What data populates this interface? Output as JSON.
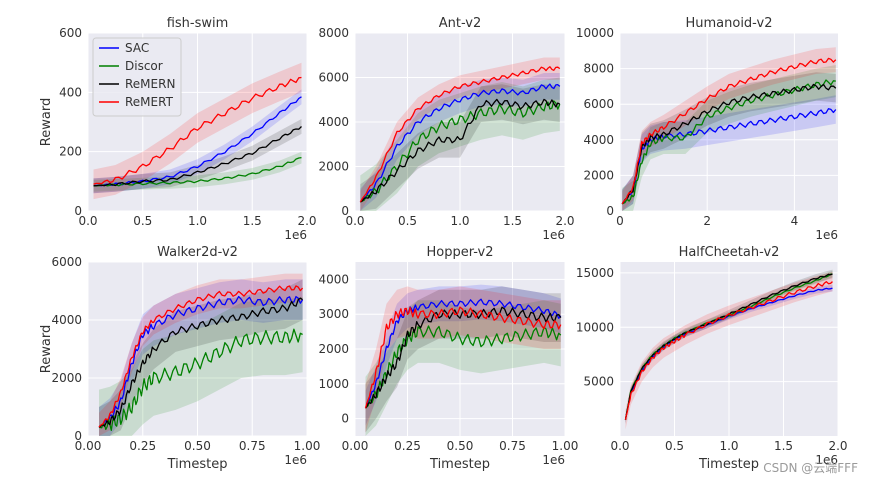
{
  "figure": {
    "ylabel": "Reward",
    "xlabel": "Timestep",
    "watermark": "CSDN @云端FFF"
  },
  "legend": {
    "entries": [
      {
        "name": "SAC",
        "color": "#0000ff"
      },
      {
        "name": "Discor",
        "color": "#008000"
      },
      {
        "name": "ReMERN",
        "color": "#000000"
      },
      {
        "name": "ReMERT",
        "color": "#ff0000"
      }
    ]
  },
  "chart_data": [
    {
      "type": "line",
      "title": "fish-swim",
      "xlim": [
        0,
        2000000
      ],
      "ylim": [
        0,
        600
      ],
      "xticks": [
        0,
        500000,
        1000000,
        1500000,
        2000000
      ],
      "xtick_labels": [
        "0.0",
        "0.5",
        "1.0",
        "1.5",
        "2.0"
      ],
      "x_offset_label": "1e6",
      "yticks": [
        0,
        200,
        400,
        600
      ],
      "ytick_labels": [
        "0",
        "200",
        "400",
        "600"
      ],
      "xlabel": "",
      "ylabel": "Reward",
      "legend": true,
      "x": [
        50000,
        250000,
        500000,
        750000,
        1000000,
        1250000,
        1500000,
        1750000,
        1950000
      ],
      "series": [
        {
          "name": "SAC",
          "color": "#0000ff",
          "values": [
            85,
            90,
            100,
            115,
            150,
            200,
            260,
            330,
            385
          ],
          "band": 25
        },
        {
          "name": "Discor",
          "color": "#008000",
          "values": [
            85,
            88,
            92,
            95,
            100,
            110,
            125,
            150,
            180
          ],
          "band": 20
        },
        {
          "name": "ReMERN",
          "color": "#000000",
          "values": [
            85,
            90,
            100,
            105,
            130,
            160,
            195,
            245,
            285
          ],
          "band": 25
        },
        {
          "name": "ReMERT",
          "color": "#ff0000",
          "values": [
            90,
            105,
            150,
            210,
            280,
            330,
            380,
            420,
            450
          ],
          "band": 50
        }
      ]
    },
    {
      "type": "line",
      "title": "Ant-v2",
      "xlim": [
        0,
        2000000
      ],
      "ylim": [
        0,
        8000
      ],
      "xticks": [
        0,
        500000,
        1000000,
        1500000,
        2000000
      ],
      "xtick_labels": [
        "0.0",
        "0.5",
        "1.0",
        "1.5",
        "2.0"
      ],
      "x_offset_label": "1e6",
      "yticks": [
        0,
        2000,
        4000,
        6000,
        8000
      ],
      "ytick_labels": [
        "0",
        "2000",
        "4000",
        "6000",
        "8000"
      ],
      "xlabel": "",
      "ylabel": "",
      "legend": false,
      "x": [
        50000,
        200000,
        400000,
        600000,
        800000,
        1000000,
        1200000,
        1400000,
        1600000,
        1800000,
        1950000
      ],
      "series": [
        {
          "name": "SAC",
          "color": "#0000ff",
          "values": [
            400,
            1200,
            2900,
            4000,
            4600,
            5000,
            5300,
            5400,
            5300,
            5600,
            5600
          ],
          "band": 600
        },
        {
          "name": "Discor",
          "color": "#008000",
          "values": [
            400,
            900,
            2000,
            3200,
            3800,
            4100,
            4400,
            4600,
            4400,
            4700,
            4800
          ],
          "band": 1200
        },
        {
          "name": "ReMERN",
          "color": "#000000",
          "values": [
            400,
            900,
            1800,
            2700,
            3200,
            3200,
            4800,
            4900,
            4700,
            4900,
            4800
          ],
          "band": 800
        },
        {
          "name": "ReMERT",
          "color": "#ff0000",
          "values": [
            400,
            1500,
            3500,
            4600,
            5200,
            5600,
            5800,
            6000,
            6200,
            6400,
            6400
          ],
          "band": 500
        }
      ]
    },
    {
      "type": "line",
      "title": "Humanoid-v2",
      "xlim": [
        0,
        5000000
      ],
      "ylim": [
        0,
        10000
      ],
      "xticks": [
        0,
        2000000,
        4000000
      ],
      "xtick_labels": [
        "0",
        "2",
        "4"
      ],
      "x_offset_label": "1e6",
      "yticks": [
        0,
        2000,
        4000,
        6000,
        8000,
        10000
      ],
      "ytick_labels": [
        "0",
        "2000",
        "4000",
        "6000",
        "8000",
        "10000"
      ],
      "xlabel": "",
      "ylabel": "",
      "legend": false,
      "x": [
        50000,
        300000,
        500000,
        700000,
        1000000,
        1500000,
        2000000,
        2500000,
        3000000,
        3500000,
        4000000,
        4500000,
        4950000
      ],
      "series": [
        {
          "name": "SAC",
          "color": "#0000ff",
          "values": [
            400,
            1200,
            3500,
            4000,
            4200,
            4300,
            4500,
            4700,
            4900,
            5100,
            5300,
            5500,
            5700
          ],
          "band": 800
        },
        {
          "name": "Discor",
          "color": "#008000",
          "values": [
            400,
            800,
            2800,
            3800,
            4100,
            4100,
            5300,
            5800,
            6200,
            6500,
            6800,
            7100,
            7300
          ],
          "band": 900
        },
        {
          "name": "ReMERN",
          "color": "#000000",
          "values": [
            400,
            1200,
            3600,
            4100,
            4300,
            4900,
            5600,
            6100,
            6400,
            6600,
            6800,
            7000,
            6900
          ],
          "band": 800
        },
        {
          "name": "ReMERT",
          "color": "#ff0000",
          "values": [
            400,
            1300,
            3800,
            4300,
            4700,
            5500,
            6300,
            7000,
            7400,
            7800,
            8100,
            8400,
            8500
          ],
          "band": 700
        }
      ]
    },
    {
      "type": "line",
      "title": "Walker2d-v2",
      "xlim": [
        0,
        1000000
      ],
      "ylim": [
        0,
        6000
      ],
      "xticks": [
        0,
        250000,
        500000,
        750000,
        1000000
      ],
      "xtick_labels": [
        "0.00",
        "0.25",
        "0.50",
        "0.75",
        "1.00"
      ],
      "x_offset_label": "1e6",
      "yticks": [
        0,
        2000,
        4000,
        6000
      ],
      "ytick_labels": [
        "0",
        "2000",
        "4000",
        "6000"
      ],
      "xlabel": "Timestep",
      "ylabel": "Reward",
      "legend": false,
      "x": [
        50000,
        100000,
        150000,
        200000,
        250000,
        300000,
        400000,
        500000,
        600000,
        700000,
        800000,
        900000,
        980000
      ],
      "series": [
        {
          "name": "SAC",
          "color": "#0000ff",
          "values": [
            300,
            600,
            1200,
            2500,
            3500,
            3800,
            4200,
            4400,
            4600,
            4700,
            4600,
            4700,
            4700
          ],
          "band": 700
        },
        {
          "name": "Discor",
          "color": "#008000",
          "values": [
            300,
            400,
            600,
            1000,
            1700,
            2000,
            2200,
            2500,
            2900,
            3300,
            3400,
            3400,
            3500
          ],
          "band": 1300
        },
        {
          "name": "ReMERN",
          "color": "#000000",
          "values": [
            300,
            500,
            900,
            1800,
            2500,
            3000,
            3600,
            3800,
            4000,
            4100,
            4300,
            4400,
            4700
          ],
          "band": 700
        },
        {
          "name": "ReMERT",
          "color": "#ff0000",
          "values": [
            300,
            700,
            1500,
            2700,
            3600,
            4000,
            4400,
            4700,
            4900,
            4900,
            5000,
            5100,
            5100
          ],
          "band": 500
        }
      ]
    },
    {
      "type": "line",
      "title": "Hopper-v2",
      "xlim": [
        0,
        1000000
      ],
      "ylim": [
        -500,
        4500
      ],
      "xticks": [
        0,
        250000,
        500000,
        750000,
        1000000
      ],
      "xtick_labels": [
        "0.00",
        "0.25",
        "0.50",
        "0.75",
        "1.00"
      ],
      "x_offset_label": "1e6",
      "yticks": [
        0,
        1000,
        2000,
        3000,
        4000
      ],
      "ytick_labels": [
        "0",
        "1000",
        "2000",
        "3000",
        "4000"
      ],
      "xlabel": "Timestep",
      "ylabel": "",
      "legend": false,
      "x": [
        50000,
        100000,
        150000,
        200000,
        250000,
        300000,
        400000,
        500000,
        600000,
        700000,
        800000,
        900000,
        980000
      ],
      "series": [
        {
          "name": "SAC",
          "color": "#0000ff",
          "values": [
            300,
            1000,
            2000,
            2800,
            3100,
            3200,
            3300,
            3300,
            3350,
            3300,
            3200,
            3100,
            2950
          ],
          "band": 500
        },
        {
          "name": "Discor",
          "color": "#008000",
          "values": [
            300,
            700,
            1300,
            1900,
            2300,
            2500,
            2500,
            2300,
            2200,
            2300,
            2400,
            2500,
            2400
          ],
          "band": 900
        },
        {
          "name": "ReMERN",
          "color": "#000000",
          "values": [
            300,
            700,
            1200,
            1600,
            2400,
            2700,
            3000,
            3000,
            3000,
            3100,
            3000,
            2900,
            2900
          ],
          "band": 700
        },
        {
          "name": "ReMERT",
          "color": "#ff0000",
          "values": [
            300,
            1300,
            2600,
            3000,
            3100,
            3000,
            3000,
            3100,
            3000,
            2900,
            2800,
            2700,
            2700
          ],
          "band": 700
        }
      ]
    },
    {
      "type": "line",
      "title": "HalfCheetah-v2",
      "xlim": [
        0,
        2000000
      ],
      "ylim": [
        0,
        16000
      ],
      "xticks": [
        0,
        500000,
        1000000,
        1500000,
        2000000
      ],
      "xtick_labels": [
        "0.0",
        "0.5",
        "1.0",
        "1.5",
        "2.0"
      ],
      "x_offset_label": "1e6",
      "yticks": [
        5000,
        10000,
        15000
      ],
      "ytick_labels": [
        "5000",
        "10000",
        "15000"
      ],
      "xlabel": "Timestep",
      "ylabel": "",
      "legend": false,
      "x": [
        50000,
        100000,
        200000,
        300000,
        400000,
        500000,
        600000,
        800000,
        1000000,
        1200000,
        1400000,
        1600000,
        1800000,
        1950000
      ],
      "series": [
        {
          "name": "SAC",
          "color": "#0000ff",
          "values": [
            1500,
            4000,
            6000,
            7300,
            8200,
            8900,
            9400,
            10200,
            11000,
            11700,
            12300,
            12900,
            13400,
            13600
          ],
          "band": 300
        },
        {
          "name": "Discor",
          "color": "#008000",
          "values": [
            1500,
            4200,
            6200,
            7500,
            8300,
            9000,
            9500,
            10400,
            11100,
            11900,
            12800,
            13600,
            14300,
            14900
          ],
          "band": 300
        },
        {
          "name": "ReMERN",
          "color": "#000000",
          "values": [
            1500,
            4100,
            6200,
            7400,
            8300,
            8900,
            9500,
            10300,
            11200,
            12100,
            13000,
            13800,
            14500,
            14900
          ],
          "band": 400
        },
        {
          "name": "ReMERT",
          "color": "#ff0000",
          "values": [
            1500,
            3800,
            5900,
            7200,
            8100,
            8700,
            9300,
            10300,
            11100,
            11800,
            12500,
            13200,
            13800,
            14200
          ],
          "band": 900
        }
      ]
    }
  ]
}
